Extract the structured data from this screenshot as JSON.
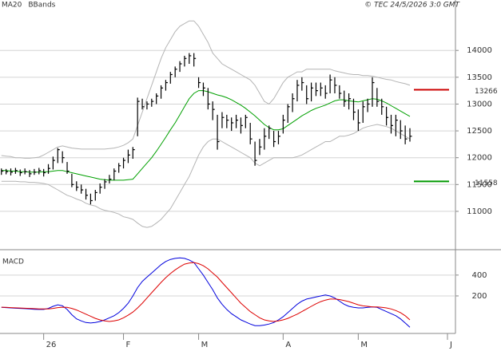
{
  "chart_data": [
    {
      "type": "ohlc",
      "source": "© TEC 24/5/2026 3:0 GMT",
      "xlim": [
        -0.3,
        96.7
      ],
      "xticks": [
        {
          "value": 9,
          "label": "26"
        },
        {
          "value": 26,
          "label": "F"
        },
        {
          "value": 42,
          "label": "M"
        },
        {
          "value": 60,
          "label": "A"
        },
        {
          "value": 76,
          "label": "M"
        },
        {
          "value": 95,
          "label": "J"
        }
      ],
      "ylim": [
        10300,
        14940
      ],
      "yticks": [
        11000,
        11500,
        12000,
        12500,
        13000,
        13500,
        14000
      ],
      "grid": true,
      "bar_color": "#000000",
      "high": [
        11800,
        11790,
        11800,
        11810,
        11780,
        11800,
        11770,
        11790,
        11810,
        11790,
        11880,
        12020,
        12180,
        12120,
        11920,
        11700,
        11560,
        11500,
        11420,
        11330,
        11400,
        11520,
        11600,
        11680,
        11800,
        11900,
        12000,
        12150,
        12200,
        13120,
        13100,
        13050,
        13100,
        13200,
        13350,
        13450,
        13600,
        13700,
        13800,
        13900,
        13950,
        13950,
        13500,
        13400,
        13300,
        13050,
        12800,
        12850,
        12800,
        12750,
        12800,
        12750,
        12800,
        12650,
        12300,
        12350,
        12550,
        12600,
        12500,
        12500,
        12800,
        13000,
        13200,
        13450,
        13500,
        13350,
        13400,
        13400,
        13400,
        13350,
        13550,
        13500,
        13350,
        13250,
        13200,
        13100,
        12900,
        13050,
        13100,
        13500,
        13300,
        13100,
        12950,
        12800,
        12800,
        12700,
        12600,
        12550
      ],
      "low": [
        11680,
        11690,
        11670,
        11700,
        11660,
        11690,
        11640,
        11680,
        11690,
        11650,
        11700,
        11780,
        11900,
        11900,
        11700,
        11450,
        11380,
        11330,
        11220,
        11130,
        11200,
        11330,
        11420,
        11520,
        11580,
        11720,
        11800,
        11900,
        11980,
        12400,
        12900,
        12900,
        12950,
        13000,
        13100,
        13250,
        13380,
        13500,
        13600,
        13700,
        13750,
        13700,
        13300,
        13150,
        12900,
        12700,
        12150,
        12550,
        12550,
        12500,
        12550,
        12450,
        12550,
        12250,
        11850,
        12050,
        12150,
        12350,
        12200,
        12250,
        12450,
        12650,
        12850,
        13050,
        13250,
        13000,
        13050,
        13150,
        13150,
        13100,
        13200,
        13200,
        13100,
        12950,
        12900,
        12700,
        12500,
        12650,
        12850,
        12950,
        12950,
        12800,
        12600,
        12450,
        12400,
        12350,
        12250,
        12300
      ],
      "close": [
        11750,
        11740,
        11730,
        11760,
        11720,
        11740,
        11700,
        11730,
        11760,
        11720,
        11800,
        11950,
        12150,
        12000,
        11750,
        11500,
        11450,
        11400,
        11300,
        11200,
        11350,
        11450,
        11550,
        11600,
        11750,
        11850,
        11950,
        12050,
        12150,
        13050,
        12950,
        13000,
        13050,
        13150,
        13300,
        13400,
        13550,
        13650,
        13750,
        13850,
        13900,
        13850,
        13400,
        13300,
        13000,
        12900,
        12300,
        12750,
        12700,
        12650,
        12700,
        12600,
        12750,
        12350,
        11950,
        12200,
        12400,
        12550,
        12300,
        12400,
        12700,
        12950,
        13100,
        13350,
        13400,
        13100,
        13300,
        13250,
        13300,
        13200,
        13450,
        13350,
        13200,
        13050,
        13100,
        12850,
        12650,
        12950,
        13000,
        13400,
        13050,
        12950,
        12750,
        12600,
        12700,
        12500,
        12350,
        12400
      ],
      "series": [
        {
          "name": "MA20",
          "color": "#00a000",
          "values": [
            11760,
            11760,
            11750,
            11750,
            11740,
            11740,
            11730,
            11730,
            11730,
            11740,
            11740,
            11750,
            11760,
            11760,
            11740,
            11720,
            11700,
            11680,
            11660,
            11640,
            11620,
            11600,
            11590,
            11580,
            11580,
            11580,
            11580,
            11590,
            11600,
            11700,
            11800,
            11900,
            12000,
            12120,
            12250,
            12380,
            12520,
            12650,
            12800,
            12950,
            13100,
            13200,
            13250,
            13250,
            13230,
            13200,
            13170,
            13150,
            13120,
            13080,
            13030,
            12980,
            12920,
            12850,
            12780,
            12700,
            12620,
            12560,
            12520,
            12520,
            12540,
            12600,
            12660,
            12720,
            12780,
            12830,
            12880,
            12920,
            12950,
            12980,
            13020,
            13060,
            13080,
            13080,
            13060,
            13050,
            13040,
            13060,
            13080,
            13100,
            13090,
            13060,
            13020,
            12970,
            12920,
            12870,
            12820,
            12770
          ]
        },
        {
          "name": "BBands",
          "color": "#b4b4b4",
          "upper": [
            12040,
            12030,
            12020,
            12000,
            12000,
            11990,
            11990,
            12000,
            12010,
            12050,
            12100,
            12150,
            12200,
            12220,
            12200,
            12180,
            12170,
            12160,
            12160,
            12160,
            12160,
            12160,
            12160,
            12170,
            12180,
            12200,
            12230,
            12280,
            12350,
            12600,
            12850,
            13100,
            13350,
            13600,
            13850,
            14050,
            14200,
            14350,
            14450,
            14500,
            14550,
            14550,
            14450,
            14300,
            14150,
            13950,
            13850,
            13750,
            13700,
            13650,
            13600,
            13550,
            13500,
            13450,
            13350,
            13200,
            13050,
            13000,
            13100,
            13250,
            13400,
            13500,
            13550,
            13600,
            13600,
            13650,
            13650,
            13650,
            13650,
            13650,
            13650,
            13620,
            13600,
            13580,
            13560,
            13550,
            13550,
            13530,
            13530,
            13520,
            13500,
            13480,
            13460,
            13450,
            13420,
            13400,
            13380,
            13350
          ],
          "lower": [
            11560,
            11560,
            11560,
            11560,
            11550,
            11550,
            11540,
            11540,
            11530,
            11520,
            11500,
            11450,
            11400,
            11350,
            11300,
            11270,
            11230,
            11200,
            11150,
            11120,
            11100,
            11050,
            11020,
            11000,
            10980,
            10950,
            10900,
            10880,
            10850,
            10780,
            10720,
            10700,
            10720,
            10780,
            10850,
            10950,
            11050,
            11200,
            11350,
            11500,
            11650,
            11850,
            12050,
            12200,
            12300,
            12350,
            12350,
            12300,
            12250,
            12200,
            12150,
            12100,
            12050,
            12000,
            11900,
            11850,
            11900,
            11950,
            12000,
            12000,
            12000,
            12000,
            12000,
            12020,
            12050,
            12100,
            12150,
            12200,
            12250,
            12300,
            12300,
            12350,
            12400,
            12400,
            12420,
            12450,
            12500,
            12550,
            12580,
            12600,
            12620,
            12600,
            12580,
            12550,
            12500,
            12450,
            12400,
            12350
          ]
        }
      ],
      "levels": [
        {
          "value": 13266,
          "color": "#cc0000"
        },
        {
          "value": 11558,
          "color": "#009900"
        }
      ]
    },
    {
      "type": "line",
      "title": "MACD",
      "ylim": [
        -160,
        590
      ],
      "yticks": [
        200,
        400
      ],
      "grid": true,
      "series": [
        {
          "color": "#0000dd",
          "values": [
            90,
            88,
            85,
            82,
            80,
            78,
            75,
            72,
            70,
            70,
            80,
            100,
            115,
            105,
            70,
            20,
            -20,
            -40,
            -55,
            -60,
            -55,
            -45,
            -30,
            -10,
            10,
            40,
            80,
            130,
            200,
            280,
            340,
            380,
            420,
            460,
            500,
            530,
            550,
            560,
            565,
            560,
            545,
            520,
            460,
            400,
            330,
            260,
            180,
            120,
            70,
            30,
            0,
            -30,
            -50,
            -70,
            -85,
            -85,
            -80,
            -70,
            -55,
            -30,
            0,
            40,
            80,
            120,
            150,
            170,
            180,
            190,
            200,
            210,
            200,
            180,
            150,
            120,
            100,
            90,
            85,
            85,
            90,
            95,
            90,
            70,
            50,
            30,
            10,
            -20,
            -60,
            -100
          ]
        },
        {
          "color": "#dd0000",
          "values": [
            92,
            90,
            88,
            86,
            84,
            82,
            80,
            78,
            76,
            75,
            76,
            80,
            88,
            92,
            90,
            80,
            65,
            45,
            25,
            5,
            -15,
            -30,
            -40,
            -45,
            -40,
            -30,
            -10,
            15,
            45,
            85,
            130,
            180,
            230,
            280,
            330,
            375,
            415,
            450,
            480,
            505,
            515,
            520,
            510,
            490,
            460,
            420,
            380,
            330,
            280,
            230,
            180,
            130,
            90,
            50,
            20,
            -10,
            -30,
            -40,
            -45,
            -40,
            -30,
            -15,
            5,
            25,
            50,
            75,
            100,
            125,
            145,
            160,
            170,
            170,
            165,
            155,
            145,
            130,
            115,
            105,
            100,
            95,
            95,
            90,
            85,
            75,
            60,
            40,
            10,
            -30
          ]
        }
      ]
    }
  ]
}
